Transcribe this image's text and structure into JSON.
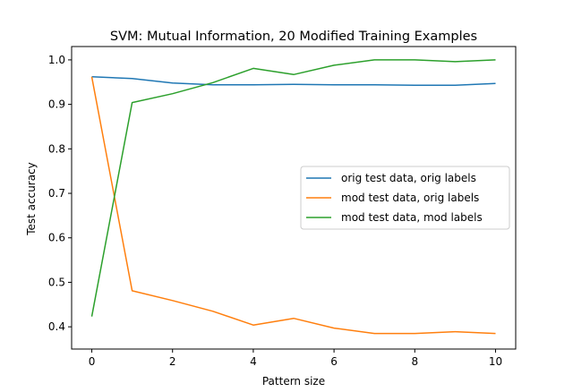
{
  "chart_data": {
    "type": "line",
    "title": "SVM: Mutual Information, 20 Modified Training Examples",
    "xlabel": "Pattern size",
    "ylabel": "Test accuracy",
    "x": [
      0,
      1,
      2,
      3,
      4,
      5,
      6,
      7,
      8,
      9,
      10
    ],
    "xlim": [
      -0.5,
      10.5
    ],
    "ylim": [
      0.35,
      1.03
    ],
    "xticks": [
      0,
      2,
      4,
      6,
      8,
      10
    ],
    "yticks": [
      0.4,
      0.5,
      0.6,
      0.7,
      0.8,
      0.9,
      1.0
    ],
    "ytick_labels": [
      "0.4",
      "0.5",
      "0.6",
      "0.7",
      "0.8",
      "0.9",
      "1.0"
    ],
    "grid": false,
    "legend_position": "center-right",
    "series": [
      {
        "name": "orig test data, orig labels",
        "color": "#1f77b4",
        "values": [
          0.962,
          0.958,
          0.948,
          0.944,
          0.944,
          0.945,
          0.944,
          0.944,
          0.943,
          0.943,
          0.947
        ]
      },
      {
        "name": "mod test data, orig labels",
        "color": "#ff7f0e",
        "values": [
          0.962,
          0.481,
          0.459,
          0.435,
          0.404,
          0.419,
          0.397,
          0.385,
          0.385,
          0.389,
          0.385
        ]
      },
      {
        "name": "mod test data, mod labels",
        "color": "#2ca02c",
        "values": [
          0.423,
          0.904,
          0.924,
          0.949,
          0.981,
          0.967,
          0.988,
          1.0,
          1.0,
          0.996,
          1.0
        ]
      }
    ]
  }
}
